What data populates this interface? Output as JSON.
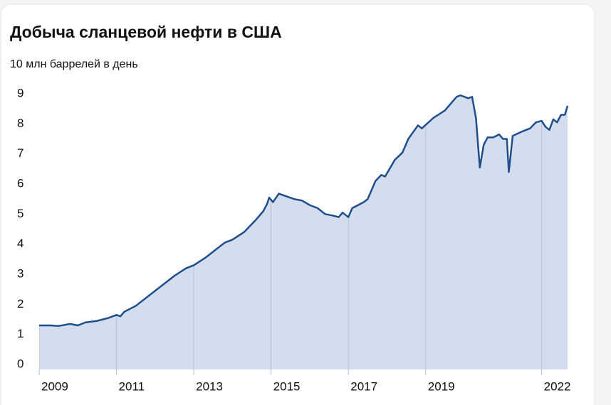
{
  "chart_data": {
    "type": "area",
    "title": "Добыча сланцевой нефти в США",
    "subtitle": "10 млн баррелей в день",
    "color": "#1f4e8c",
    "fill": "#d3dded",
    "x": [
      2009.0,
      2009.3,
      2009.5,
      2009.8,
      2010.0,
      2010.2,
      2010.5,
      2010.8,
      2011.0,
      2011.1,
      2011.2,
      2011.5,
      2011.8,
      2012.0,
      2012.3,
      2012.5,
      2012.8,
      2013.0,
      2013.3,
      2013.6,
      2013.8,
      2014.0,
      2014.3,
      2014.6,
      2014.8,
      2014.9,
      2014.95,
      2015.05,
      2015.2,
      2015.6,
      2015.8,
      2016.0,
      2016.2,
      2016.4,
      2016.6,
      2016.75,
      2016.85,
      2017.0,
      2017.1,
      2017.4,
      2017.5,
      2017.7,
      2017.85,
      2017.95,
      2018.2,
      2018.4,
      2018.55,
      2018.8,
      2018.9,
      2019.2,
      2019.5,
      2019.8,
      2019.9,
      2020.1,
      2020.2,
      2020.3,
      2020.4,
      2020.5,
      2020.6,
      2020.75,
      2020.9,
      2021.0,
      2021.1,
      2021.15,
      2021.25,
      2021.5,
      2021.7,
      2021.85,
      2022.0,
      2022.1,
      2022.2,
      2022.3,
      2022.4,
      2022.5,
      2022.6,
      2022.67
    ],
    "values": [
      1.3,
      1.3,
      1.28,
      1.35,
      1.3,
      1.4,
      1.45,
      1.55,
      1.65,
      1.6,
      1.75,
      1.95,
      2.25,
      2.45,
      2.75,
      2.95,
      3.2,
      3.3,
      3.55,
      3.85,
      4.05,
      4.15,
      4.4,
      4.8,
      5.1,
      5.35,
      5.55,
      5.4,
      5.68,
      5.5,
      5.45,
      5.3,
      5.2,
      5.0,
      4.95,
      4.9,
      5.05,
      4.9,
      5.2,
      5.4,
      5.5,
      6.1,
      6.3,
      6.25,
      6.8,
      7.05,
      7.5,
      7.95,
      7.85,
      8.2,
      8.45,
      8.9,
      8.95,
      8.85,
      8.9,
      8.2,
      6.55,
      7.3,
      7.55,
      7.55,
      7.65,
      7.5,
      7.5,
      6.4,
      7.6,
      7.75,
      7.85,
      8.05,
      8.1,
      7.9,
      7.8,
      8.15,
      8.05,
      8.3,
      8.3,
      8.6
    ],
    "xlim": [
      2009,
      2022.67
    ],
    "xticks": [
      2009,
      2011,
      2013,
      2015,
      2017,
      2019,
      2022
    ],
    "ylim": [
      0,
      9
    ],
    "yticks": [
      0,
      1,
      2,
      3,
      4,
      5,
      6,
      7,
      8,
      9
    ]
  }
}
